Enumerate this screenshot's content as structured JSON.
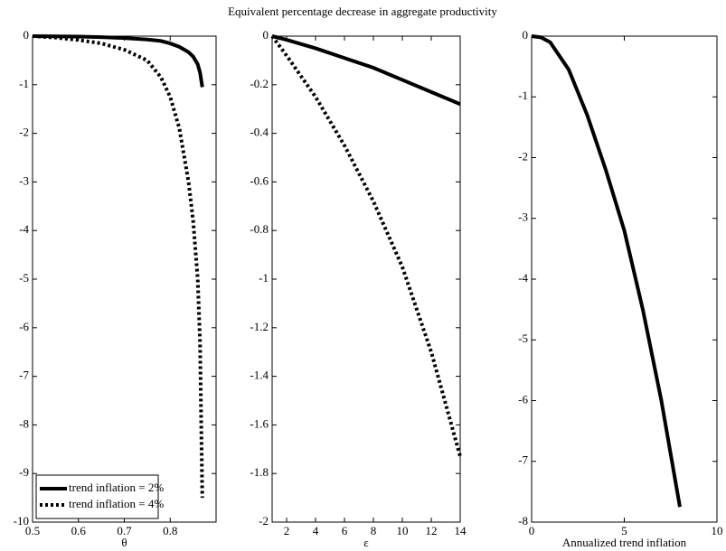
{
  "title": "Equivalent percentage decrease in aggregate productivity",
  "chart_data": [
    {
      "type": "line",
      "xlabel": "θ",
      "x": [
        0.5,
        0.55,
        0.6,
        0.65,
        0.7,
        0.75,
        0.78,
        0.8,
        0.82,
        0.84,
        0.85,
        0.86,
        0.865,
        0.87
      ],
      "series": [
        {
          "name": "trend inflation = 2%",
          "color": "#000000",
          "style": "solid",
          "values": [
            0,
            -0.005,
            -0.01,
            -0.02,
            -0.04,
            -0.07,
            -0.1,
            -0.15,
            -0.22,
            -0.33,
            -0.42,
            -0.58,
            -0.75,
            -1.05
          ]
        },
        {
          "name": "trend inflation = 4%",
          "color": "#000000",
          "style": "dotted",
          "values": [
            0,
            -0.03,
            -0.08,
            -0.15,
            -0.28,
            -0.5,
            -0.85,
            -1.25,
            -1.9,
            -3.0,
            -3.8,
            -5.0,
            -6.3,
            -9.5
          ]
        }
      ],
      "xlim": [
        0.5,
        0.9
      ],
      "xticks": [
        0.5,
        0.6,
        0.7,
        0.8
      ],
      "ylim": [
        -10,
        0
      ],
      "yticks": [
        -10,
        -9,
        -8,
        -7,
        -6,
        -5,
        -4,
        -3,
        -2,
        -1,
        0
      ],
      "legend": "lower left"
    },
    {
      "type": "line",
      "xlabel": "ε",
      "x": [
        1,
        2,
        4,
        6,
        8,
        10,
        12,
        14
      ],
      "series": [
        {
          "color": "#000000",
          "style": "solid",
          "values": [
            0,
            -0.015,
            -0.05,
            -0.09,
            -0.13,
            -0.18,
            -0.23,
            -0.28
          ]
        },
        {
          "color": "#000000",
          "style": "dotted",
          "values": [
            0,
            -0.08,
            -0.25,
            -0.45,
            -0.68,
            -0.95,
            -1.3,
            -1.73
          ]
        }
      ],
      "xlim": [
        1,
        14
      ],
      "xticks": [
        2,
        4,
        6,
        8,
        10,
        12,
        14
      ],
      "ylim": [
        -2,
        0
      ],
      "yticks": [
        -2,
        -1.8,
        -1.6,
        -1.4,
        -1.2,
        -1,
        -0.8,
        -0.6,
        -0.4,
        -0.2,
        0
      ]
    },
    {
      "type": "line",
      "xlabel": "Annualized trend inflation",
      "x": [
        0,
        0.5,
        1,
        2,
        3,
        4,
        5,
        6,
        7,
        8
      ],
      "series": [
        {
          "color": "#000000",
          "style": "solid",
          "values": [
            0,
            -0.02,
            -0.1,
            -0.55,
            -1.3,
            -2.2,
            -3.2,
            -4.5,
            -6.0,
            -7.75
          ]
        }
      ],
      "xlim": [
        0,
        10
      ],
      "xticks": [
        0,
        5,
        10
      ],
      "ylim": [
        -8,
        0
      ],
      "yticks": [
        -8,
        -7,
        -6,
        -5,
        -4,
        -3,
        -2,
        -1,
        0
      ]
    }
  ]
}
